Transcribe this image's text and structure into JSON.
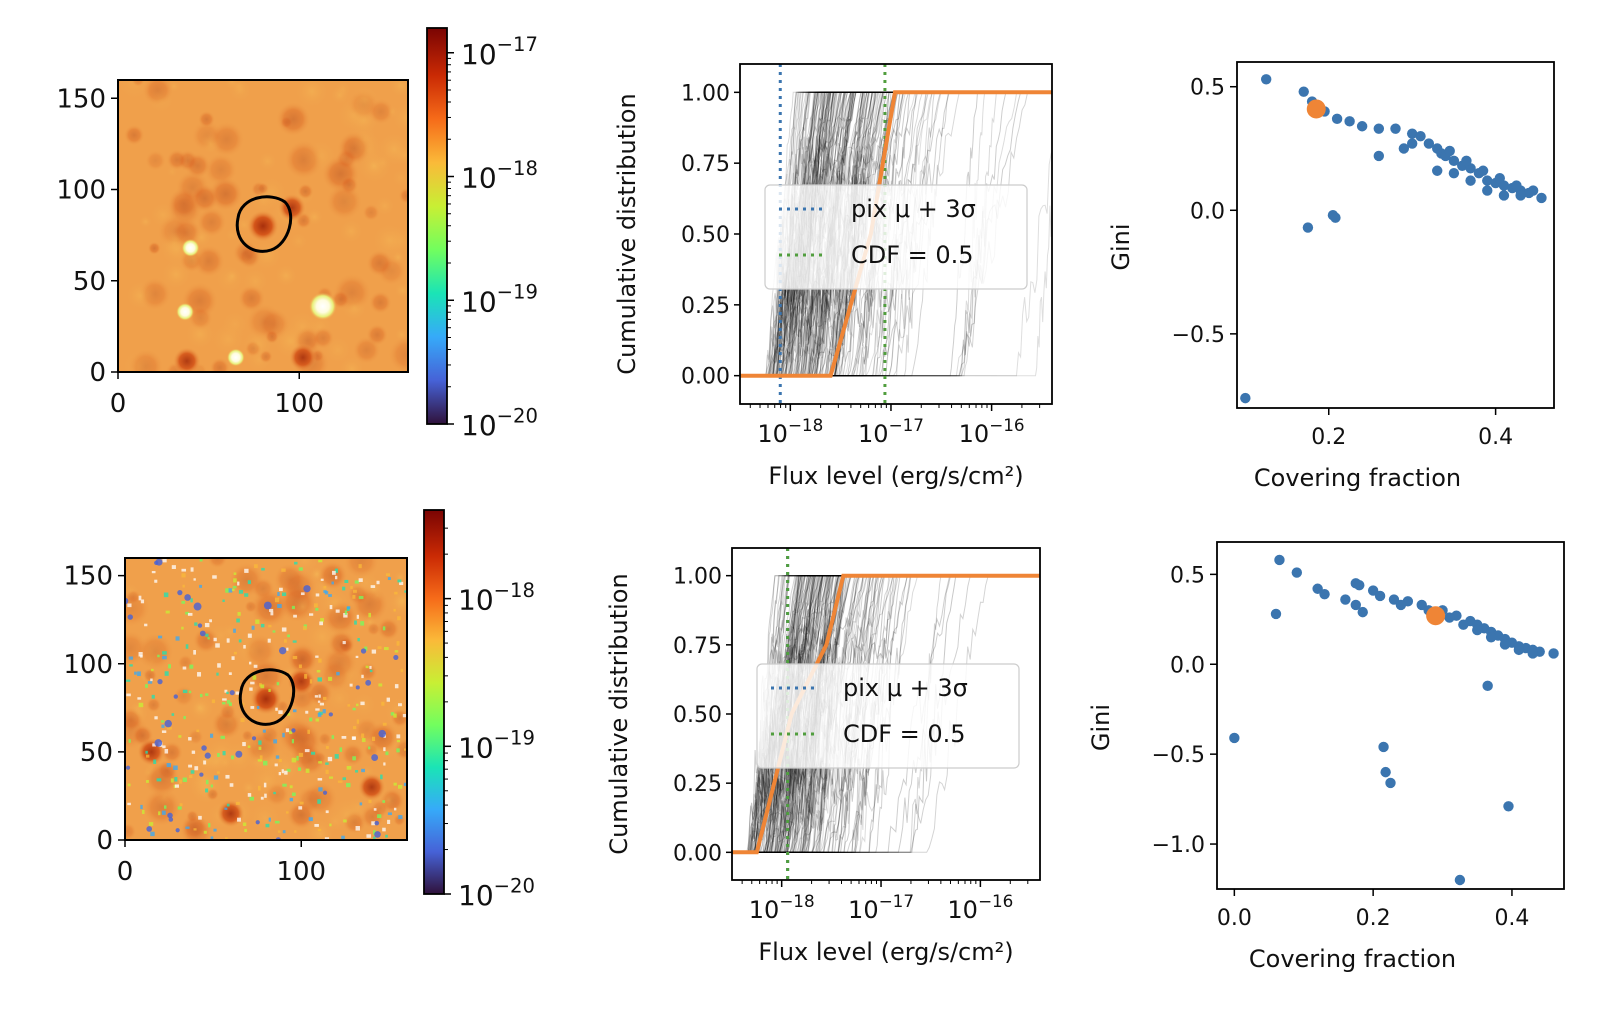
{
  "colors": {
    "highlight": "#ef8536",
    "scatter": "#3b75af",
    "mu_line": "#3b75af",
    "cdf_line": "#519e3e",
    "contour": "#000000",
    "map_bg": "#f0a04b",
    "cmap": [
      "#30123b",
      "#4662d7",
      "#36aaf9",
      "#1ae4b6",
      "#72fe5e",
      "#c8ef34",
      "#faba39",
      "#f66b19",
      "#ca2a04",
      "#7a0403"
    ]
  },
  "chart_data": [
    {
      "panel": "row1-map",
      "type": "heatmap",
      "xticks": [
        "0",
        "100"
      ],
      "yticks": [
        "0",
        "50",
        "100",
        "150"
      ],
      "xlim": [
        0,
        160
      ],
      "ylim": [
        0,
        160
      ],
      "colorbar": {
        "scale": "log",
        "ticks": [
          "10^{-20}",
          "10^{-19}",
          "10^{-18}",
          "10^{-17}"
        ],
        "range": [
          -20,
          -16.8
        ]
      },
      "contour_center": [
        80,
        80
      ],
      "bright_spots": [
        [
          40,
          68
        ],
        [
          113,
          36
        ],
        [
          37,
          33
        ],
        [
          65,
          8
        ]
      ],
      "dark_spots": [
        [
          96,
          90
        ],
        [
          102,
          8
        ],
        [
          38,
          6
        ]
      ],
      "speckle": false
    },
    {
      "panel": "row1-cdf",
      "type": "line",
      "xscale": "log",
      "xlim_log10": [
        -18.5,
        -15.4
      ],
      "ylim": [
        -0.1,
        1.1
      ],
      "xlabel": "Flux level (erg/s/cm²)",
      "ylabel": "Cumulative distribution",
      "xticks": [
        "10^{-18}",
        "10^{-17}",
        "10^{-16}"
      ],
      "yticks": [
        "0.00",
        "0.25",
        "0.50",
        "0.75",
        "1.00"
      ],
      "legend": [
        {
          "label": "pix μ + 3σ",
          "style": "dotted",
          "color": "#3b75af"
        },
        {
          "label": "CDF  = 0.5",
          "style": "dotted",
          "color": "#519e3e"
        }
      ],
      "legend_position": "center-right",
      "mu_line_log10": -18.1,
      "cdf_line_log10": -17.06,
      "highlight_cdf": [
        [
          -18.5,
          0
        ],
        [
          -17.6,
          0
        ],
        [
          -17.2,
          0.5
        ],
        [
          -16.96,
          1.0
        ],
        [
          -15.4,
          1.0
        ]
      ],
      "background_curves": {
        "count": 200,
        "median_start_log10": -18.25,
        "spread": 0.55,
        "width_mean": 0.45
      }
    },
    {
      "panel": "row1-gini",
      "type": "scatter",
      "xlabel": "Covering fraction",
      "ylabel": "Gini",
      "xlim": [
        0.09,
        0.47
      ],
      "ylim": [
        -0.8,
        0.6
      ],
      "xticks": [
        "0.2",
        "0.4"
      ],
      "yticks": [
        "−0.5",
        "0.0",
        "0.5"
      ],
      "highlight_point": [
        0.185,
        0.41
      ],
      "points": [
        [
          0.1,
          -0.76
        ],
        [
          0.125,
          0.53
        ],
        [
          0.175,
          -0.07
        ],
        [
          0.205,
          -0.02
        ],
        [
          0.208,
          -0.03
        ],
        [
          0.17,
          0.48
        ],
        [
          0.18,
          0.44
        ],
        [
          0.195,
          0.4
        ],
        [
          0.21,
          0.37
        ],
        [
          0.225,
          0.36
        ],
        [
          0.24,
          0.34
        ],
        [
          0.26,
          0.33
        ],
        [
          0.28,
          0.33
        ],
        [
          0.3,
          0.31
        ],
        [
          0.31,
          0.3
        ],
        [
          0.32,
          0.27
        ],
        [
          0.33,
          0.25
        ],
        [
          0.335,
          0.23
        ],
        [
          0.34,
          0.22
        ],
        [
          0.35,
          0.2
        ],
        [
          0.36,
          0.18
        ],
        [
          0.37,
          0.17
        ],
        [
          0.38,
          0.15
        ],
        [
          0.39,
          0.12
        ],
        [
          0.4,
          0.11
        ],
        [
          0.41,
          0.1
        ],
        [
          0.42,
          0.09
        ],
        [
          0.43,
          0.08
        ],
        [
          0.44,
          0.07
        ],
        [
          0.455,
          0.05
        ],
        [
          0.26,
          0.22
        ],
        [
          0.29,
          0.25
        ],
        [
          0.33,
          0.16
        ],
        [
          0.35,
          0.15
        ],
        [
          0.37,
          0.12
        ],
        [
          0.39,
          0.08
        ],
        [
          0.41,
          0.06
        ],
        [
          0.43,
          0.06
        ],
        [
          0.3,
          0.27
        ],
        [
          0.345,
          0.24
        ],
        [
          0.365,
          0.2
        ],
        [
          0.385,
          0.16
        ],
        [
          0.405,
          0.13
        ],
        [
          0.425,
          0.1
        ],
        [
          0.445,
          0.08
        ]
      ]
    },
    {
      "panel": "row2-map",
      "type": "heatmap",
      "xticks": [
        "0",
        "100"
      ],
      "yticks": [
        "0",
        "50",
        "100",
        "150"
      ],
      "xlim": [
        0,
        160
      ],
      "ylim": [
        0,
        160
      ],
      "colorbar": {
        "scale": "log",
        "ticks": [
          "10^{-20}",
          "10^{-19}",
          "10^{-18}"
        ],
        "range": [
          -20,
          -17.4
        ]
      },
      "contour_center": [
        80,
        80
      ],
      "bright_spots": [],
      "dark_spots": [
        [
          100,
          90
        ],
        [
          15,
          50
        ],
        [
          140,
          30
        ],
        [
          60,
          15
        ]
      ],
      "speckle": true
    },
    {
      "panel": "row2-cdf",
      "type": "line",
      "xscale": "log",
      "xlim_log10": [
        -18.5,
        -15.4
      ],
      "ylim": [
        -0.1,
        1.1
      ],
      "xlabel": "Flux level (erg/s/cm²)",
      "ylabel": "Cumulative distribution",
      "xticks": [
        "10^{-18}",
        "10^{-17}",
        "10^{-16}"
      ],
      "yticks": [
        "0.00",
        "0.25",
        "0.50",
        "0.75",
        "1.00"
      ],
      "legend": [
        {
          "label": "pix μ + 3σ",
          "style": "dotted",
          "color": "#3b75af"
        },
        {
          "label": "CDF  = 0.5",
          "style": "dotted",
          "color": "#519e3e"
        }
      ],
      "legend_position": "center-right",
      "mu_line_log10": -17.94,
      "cdf_line_log10": -17.94,
      "highlight_cdf": [
        [
          -18.5,
          0
        ],
        [
          -18.25,
          0
        ],
        [
          -17.9,
          0.5
        ],
        [
          -17.55,
          0.75
        ],
        [
          -17.38,
          1.0
        ],
        [
          -15.4,
          1.0
        ]
      ],
      "background_curves": {
        "count": 200,
        "median_start_log10": -18.35,
        "spread": 0.45,
        "width_mean": 0.45
      }
    },
    {
      "panel": "row2-gini",
      "type": "scatter",
      "xlabel": "Covering fraction",
      "ylabel": "Gini",
      "xlim": [
        -0.025,
        0.475
      ],
      "ylim": [
        -1.25,
        0.68
      ],
      "xticks": [
        "0.0",
        "0.2",
        "0.4"
      ],
      "yticks": [
        "−1.0",
        "−0.5",
        "0.0",
        "0.5"
      ],
      "highlight_point": [
        0.29,
        0.27
      ],
      "points": [
        [
          0.0,
          -0.41
        ],
        [
          0.06,
          0.28
        ],
        [
          0.065,
          0.58
        ],
        [
          0.09,
          0.51
        ],
        [
          0.12,
          0.42
        ],
        [
          0.13,
          0.39
        ],
        [
          0.16,
          0.36
        ],
        [
          0.175,
          0.33
        ],
        [
          0.185,
          0.29
        ],
        [
          0.175,
          0.45
        ],
        [
          0.18,
          0.44
        ],
        [
          0.2,
          0.41
        ],
        [
          0.21,
          0.38
        ],
        [
          0.23,
          0.36
        ],
        [
          0.25,
          0.35
        ],
        [
          0.27,
          0.33
        ],
        [
          0.3,
          0.3
        ],
        [
          0.32,
          0.27
        ],
        [
          0.34,
          0.24
        ],
        [
          0.35,
          0.22
        ],
        [
          0.36,
          0.2
        ],
        [
          0.37,
          0.18
        ],
        [
          0.38,
          0.16
        ],
        [
          0.39,
          0.14
        ],
        [
          0.4,
          0.12
        ],
        [
          0.41,
          0.1
        ],
        [
          0.42,
          0.09
        ],
        [
          0.43,
          0.08
        ],
        [
          0.44,
          0.07
        ],
        [
          0.46,
          0.06
        ],
        [
          0.365,
          -0.12
        ],
        [
          0.215,
          -0.46
        ],
        [
          0.218,
          -0.6
        ],
        [
          0.225,
          -0.66
        ],
        [
          0.395,
          -0.79
        ],
        [
          0.325,
          -1.2
        ],
        [
          0.33,
          0.22
        ],
        [
          0.35,
          0.19
        ],
        [
          0.37,
          0.15
        ],
        [
          0.39,
          0.11
        ],
        [
          0.41,
          0.08
        ],
        [
          0.43,
          0.06
        ],
        [
          0.24,
          0.33
        ],
        [
          0.28,
          0.3
        ],
        [
          0.31,
          0.26
        ]
      ]
    }
  ]
}
